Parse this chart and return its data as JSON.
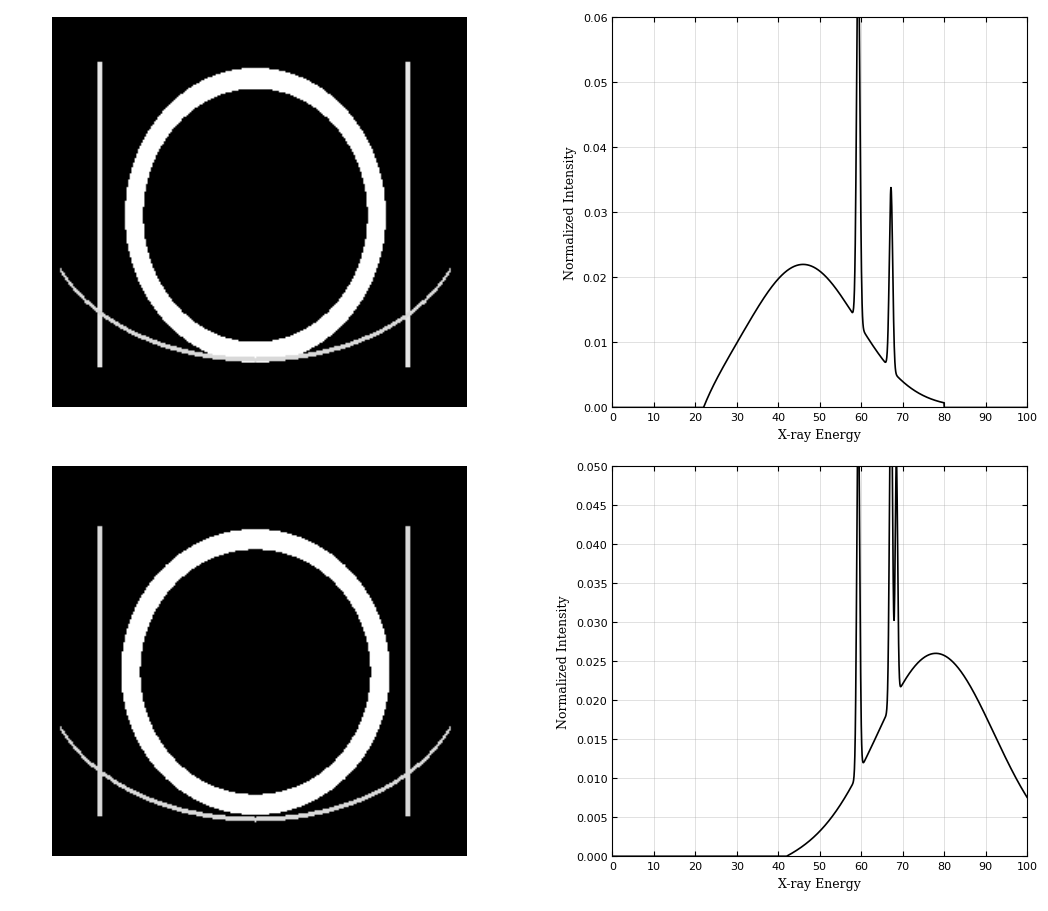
{
  "fig_width": 10.48,
  "fig_height": 9.12,
  "background_color": "#ffffff",
  "plot1_xlim": [
    0,
    100
  ],
  "plot1_ylim": [
    0,
    0.06
  ],
  "plot1_yticks": [
    0,
    0.01,
    0.02,
    0.03,
    0.04,
    0.05,
    0.06
  ],
  "plot1_xticks": [
    0,
    10,
    20,
    30,
    40,
    50,
    60,
    70,
    80,
    90,
    100
  ],
  "plot1_xlabel": "X-ray Energy",
  "plot1_ylabel": "Normalized Intensity",
  "plot2_xlim": [
    0,
    100
  ],
  "plot2_ylim": [
    0,
    0.05
  ],
  "plot2_yticks": [
    0,
    0.005,
    0.01,
    0.015,
    0.02,
    0.025,
    0.03,
    0.035,
    0.04,
    0.045,
    0.05
  ],
  "plot2_xticks": [
    0,
    10,
    20,
    30,
    40,
    50,
    60,
    70,
    80,
    90,
    100
  ],
  "plot2_xlabel": "X-ray Energy",
  "plot2_ylabel": "Normalized Intensity",
  "line_color": "#000000",
  "line_width": 1.2,
  "grid_color": "#aaaaaa",
  "grid_alpha": 0.5,
  "tick_direction": "in"
}
